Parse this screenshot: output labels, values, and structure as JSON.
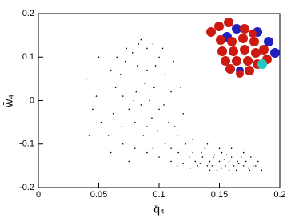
{
  "chart_data": {
    "type": "scatter",
    "x_label": "q̄₄",
    "y_label": "w̄₄",
    "color": "#000000",
    "x": [
      0.085,
      0.09,
      0.078,
      0.095,
      0.1,
      0.072,
      0.082,
      0.09,
      0.068,
      0.105,
      0.076,
      0.088,
      0.096,
      0.064,
      0.081,
      0.11,
      0.07,
      0.092,
      0.085,
      0.1,
      0.075,
      0.062,
      0.094,
      0.108,
      0.08,
      0.069,
      0.099,
      0.087,
      0.115,
      0.058,
      0.073,
      0.065,
      0.103,
      0.112,
      0.083,
      0.097,
      0.06,
      0.079,
      0.104,
      0.09,
      0.118,
      0.12,
      0.113,
      0.04,
      0.045,
      0.042,
      0.05,
      0.052,
      0.048,
      0.105,
      0.11,
      0.122,
      0.095,
      0.128,
      0.116,
      0.1,
      0.09,
      0.08,
      0.07,
      0.06,
      0.075,
      0.125,
      0.13,
      0.135,
      0.14,
      0.145,
      0.15,
      0.155,
      0.16,
      0.165,
      0.17,
      0.175,
      0.18,
      0.185,
      0.132,
      0.138,
      0.142,
      0.148,
      0.152,
      0.158,
      0.162,
      0.168,
      0.172,
      0.178,
      0.128,
      0.136,
      0.144,
      0.152,
      0.156,
      0.164,
      0.17,
      0.176,
      0.182,
      0.14,
      0.15,
      0.16,
      0.12,
      0.115,
      0.11,
      0.146,
      0.154,
      0.166,
      0.174,
      0.134,
      0.126,
      0.142,
      0.158
    ],
    "values": [
      0.14,
      0.12,
      0.11,
      0.13,
      0.1,
      0.09,
      0.08,
      0.07,
      0.06,
      0.06,
      0.05,
      0.04,
      0.03,
      0.03,
      0.02,
      0.02,
      0.01,
      0,
      -0.01,
      -0.02,
      -0.02,
      -0.03,
      -0.04,
      -0.05,
      -0.05,
      -0.06,
      -0.07,
      -0.08,
      -0.08,
      -0.08,
      0.12,
      0.1,
      0.12,
      0.09,
      0.13,
      0.08,
      0.07,
      0,
      -0.01,
      -0.06,
      0.03,
      -0.03,
      -0.06,
      0.05,
      -0.02,
      -0.08,
      0.1,
      -0.05,
      0.01,
      -0.1,
      -0.11,
      -0.1,
      -0.11,
      -0.09,
      -0.12,
      -0.13,
      -0.12,
      -0.11,
      -0.1,
      -0.12,
      -0.14,
      -0.13,
      -0.14,
      -0.12,
      -0.15,
      -0.13,
      -0.14,
      -0.15,
      -0.13,
      -0.14,
      -0.15,
      -0.16,
      -0.15,
      -0.16,
      -0.15,
      -0.11,
      -0.14,
      -0.16,
      -0.12,
      -0.14,
      -0.15,
      -0.13,
      -0.14,
      -0.15,
      -0.12,
      -0.13,
      -0.15,
      -0.155,
      -0.125,
      -0.16,
      -0.12,
      -0.13,
      -0.14,
      -0.1,
      -0.11,
      -0.11,
      -0.145,
      -0.15,
      -0.14,
      -0.125,
      -0.135,
      -0.145,
      -0.155,
      -0.145,
      -0.155,
      -0.16,
      -0.16
    ],
    "xlim": [
      0,
      0.2
    ],
    "xticks": [
      0,
      0.05,
      0.1,
      0.15,
      0.2
    ],
    "ylim": [
      -0.2,
      0.2
    ],
    "yticks": [
      -0.2,
      -0.1,
      0,
      0.1,
      0.2
    ]
  }
}
